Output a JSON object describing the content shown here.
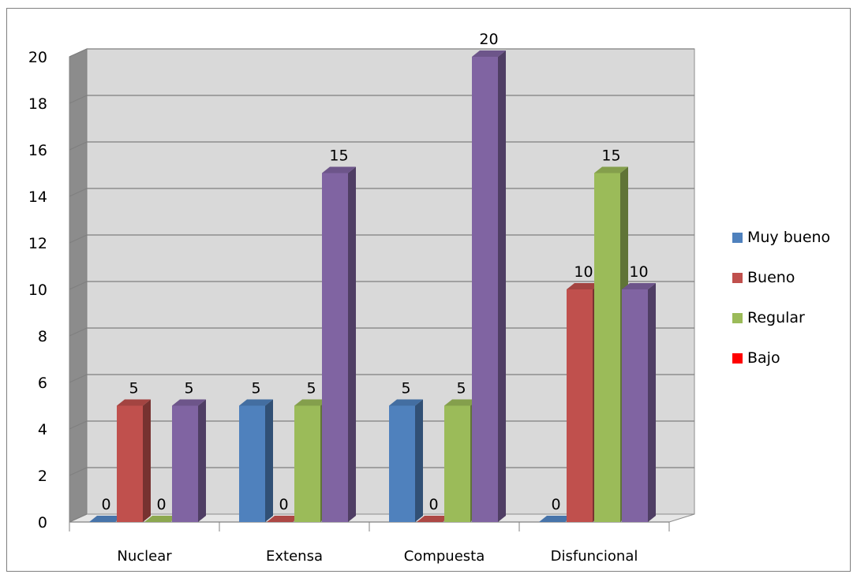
{
  "chart_data": {
    "type": "bar",
    "categories": [
      "Nuclear",
      "Extensa",
      "Compuesta",
      "Disfuncional"
    ],
    "series": [
      {
        "name": "Muy bueno",
        "color": "#4f81bd",
        "values": [
          0,
          5,
          5,
          0
        ]
      },
      {
        "name": "Bueno",
        "color": "#c0504d",
        "values": [
          5,
          0,
          0,
          10
        ]
      },
      {
        "name": "Regular",
        "color": "#9bbb59",
        "values": [
          0,
          5,
          5,
          15
        ]
      },
      {
        "name": "Bajo",
        "color": "#ff0000",
        "values": [
          5,
          15,
          20,
          10
        ]
      }
    ],
    "bar_colors": [
      "#4f81bd",
      "#c0504d",
      "#9bbb59",
      "#8064a2"
    ],
    "y_ticks": [
      "0",
      "2",
      "4",
      "6",
      "8",
      "10",
      "12",
      "14",
      "16",
      "18",
      "20"
    ],
    "ylim": [
      0,
      20
    ],
    "grid": true,
    "legend_position": "right",
    "title": "",
    "xlabel": "",
    "ylabel": ""
  }
}
